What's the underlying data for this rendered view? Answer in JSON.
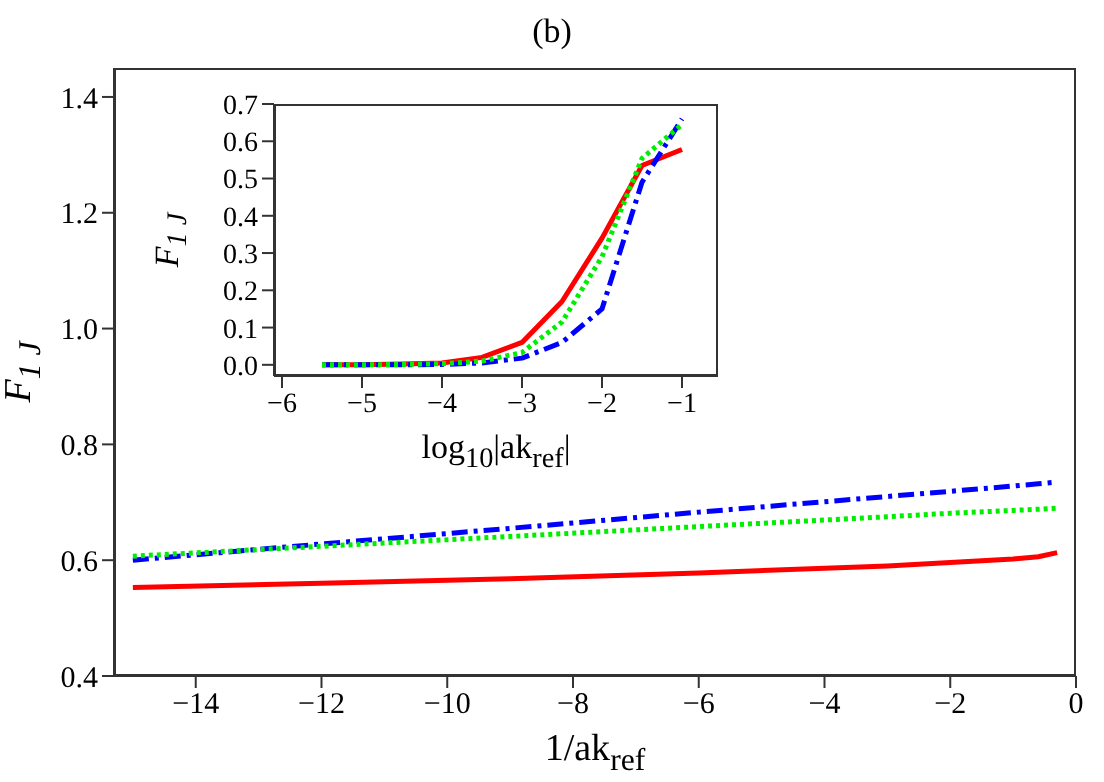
{
  "chart_data": [
    {
      "type": "line",
      "title": "(b)",
      "xlabel": "1/ak$_{ref}$",
      "ylabel": "F$_{1 J}$",
      "xlim": [
        -15.3,
        0
      ],
      "xticks": [
        {
          "value": -14,
          "label": "−14"
        },
        {
          "value": -12,
          "label": "−12"
        },
        {
          "value": -10,
          "label": "−10"
        },
        {
          "value": -8,
          "label": "−8"
        },
        {
          "value": -6,
          "label": "−6"
        },
        {
          "value": -4,
          "label": "−4"
        },
        {
          "value": -2,
          "label": "−2"
        },
        0
      ],
      "ylim": [
        0.4,
        1.45
      ],
      "yticks": [
        0.4,
        0.6,
        0.8,
        {
          "value": 1,
          "label": "1.0"
        },
        1.2,
        1.4
      ],
      "marker": "none",
      "x": [
        -15,
        -12,
        -9,
        -6,
        -3,
        -2,
        -1,
        -0.6,
        -0.3
      ],
      "series": [
        {
          "color": "#ff0000",
          "line_style": "solid",
          "values": [
            0.553,
            0.56,
            0.568,
            0.578,
            0.59,
            0.596,
            0.602,
            0.606,
            0.613
          ]
        },
        {
          "color": "#00ee00",
          "line_style": "dotted",
          "values": [
            0.607,
            0.624,
            0.641,
            0.658,
            0.675,
            0.681,
            0.686,
            0.688,
            0.69
          ]
        },
        {
          "color": "#0000ff",
          "line_style": "dashed",
          "values": [
            0.6,
            0.628,
            0.655,
            0.683,
            0.71,
            0.719,
            0.728,
            0.732,
            0.735
          ]
        }
      ]
    },
    {
      "type": "line",
      "xlabel": "log$_{10}$|ak$_{ref}$|",
      "ylabel": "F$_{1 J}$",
      "xlim": [
        -6.1,
        -0.55
      ],
      "xticks": [
        {
          "value": -6,
          "label": "−6"
        },
        {
          "value": -5,
          "label": "−5"
        },
        {
          "value": -4,
          "label": "−4"
        },
        {
          "value": -3,
          "label": "−3"
        },
        {
          "value": -2,
          "label": "−2"
        },
        {
          "value": -1,
          "label": "−1"
        }
      ],
      "ylim": [
        -0.03,
        0.7
      ],
      "yticks": [
        {
          "value": 0,
          "label": "0.0"
        },
        0.1,
        0.2,
        0.3,
        0.4,
        0.5,
        0.6,
        0.7
      ],
      "marker": "none",
      "x": [
        -5.5,
        -5,
        -4.5,
        -4,
        -3.5,
        -3,
        -2.5,
        -2,
        -1.5,
        -1
      ],
      "series": [
        {
          "color": "#ff0000",
          "line_style": "solid",
          "values": [
            0,
            0,
            0.002,
            0.005,
            0.02,
            0.06,
            0.17,
            0.34,
            0.535,
            0.578
          ]
        },
        {
          "color": "#00ee00",
          "line_style": "dotted",
          "values": [
            0,
            0,
            0.001,
            0.003,
            0.01,
            0.033,
            0.115,
            0.29,
            0.554,
            0.645
          ]
        },
        {
          "color": "#0000ff",
          "line_style": "dashed",
          "values": [
            0,
            0,
            0,
            0.001,
            0.005,
            0.018,
            0.06,
            0.15,
            0.49,
            0.66
          ]
        }
      ]
    }
  ]
}
